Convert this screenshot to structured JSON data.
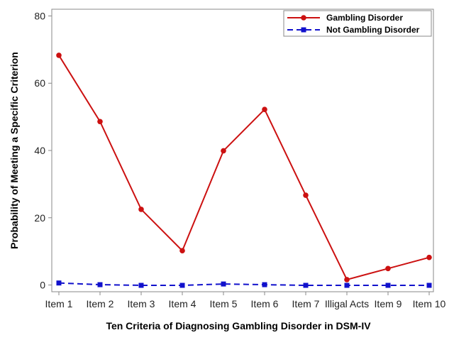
{
  "chart_data": {
    "type": "line",
    "title": "",
    "xlabel": "Ten Criteria of Diagnosing Gambling Disorder in DSM-IV",
    "ylabel": "Probability of Meeting a Specific Criterion",
    "categories": [
      "Item 1",
      "Item 2",
      "Item 3",
      "Item 4",
      "Item 5",
      "Item 6",
      "Item 7",
      "Illigal Acts",
      "Item 9",
      "Item 10"
    ],
    "ylim": [
      -2,
      82
    ],
    "yticks": [
      0,
      20,
      40,
      60,
      80
    ],
    "grid": false,
    "legend_position": "top-right",
    "series": [
      {
        "name": "Gambling Disorder",
        "values": [
          68.3,
          48.6,
          22.5,
          10.2,
          39.9,
          52.2,
          26.7,
          1.6,
          4.9,
          8.2
        ],
        "color": "#cc1111",
        "line_style": "solid",
        "marker": "circle"
      },
      {
        "name": "Not Gambling Disorder",
        "values": [
          0.6,
          0.1,
          -0.1,
          -0.1,
          0.3,
          0.1,
          -0.1,
          -0.1,
          -0.1,
          -0.1
        ],
        "color": "#1111cc",
        "line_style": "dashed",
        "marker": "square"
      }
    ]
  }
}
